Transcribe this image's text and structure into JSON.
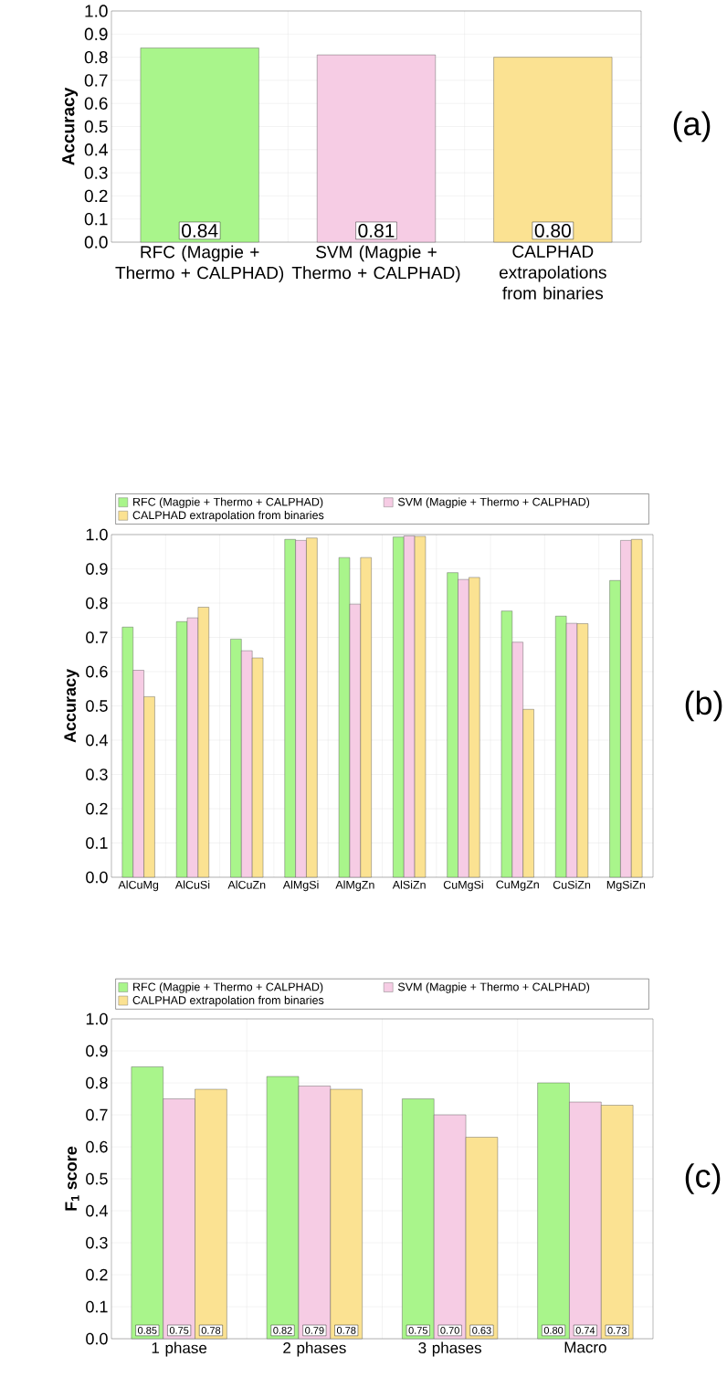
{
  "chart_data": [
    {
      "type": "bar",
      "ylabel": "Accuracy",
      "annotations": [
        "(a)"
      ],
      "categories": [
        "RFC (Magpie + Thermo + CALPHAD)",
        "SVM (Magpie + Thermo + CALPHAD)",
        "CALPHAD extrapolations from binaries"
      ],
      "values": [
        0.84,
        0.81,
        0.8
      ],
      "value_labels": [
        "0.84",
        "0.81",
        "0.80"
      ],
      "colors": [
        "#a9f58b",
        "#f6cce4",
        "#fbe292"
      ],
      "ylim": [
        0,
        1
      ],
      "yticks": [
        {
          "value": 0,
          "label": "0.0"
        },
        {
          "value": 0.1,
          "label": "0.1"
        },
        {
          "value": 0.2,
          "label": "0.2"
        },
        {
          "value": 0.3,
          "label": "0.3"
        },
        {
          "value": 0.4,
          "label": "0.4"
        },
        {
          "value": 0.5,
          "label": "0.5"
        },
        {
          "value": 0.6,
          "label": "0.6"
        },
        {
          "value": 0.7,
          "label": "0.7"
        },
        {
          "value": 0.8,
          "label": "0.8"
        },
        {
          "value": 0.9,
          "label": "0.9"
        },
        {
          "value": 1,
          "label": "1.0"
        }
      ],
      "grid": true
    },
    {
      "type": "bar",
      "ylabel": "Accuracy",
      "annotations": [
        "(b)"
      ],
      "legend": "top",
      "categories": [
        "AlCuMg",
        "AlCuSi",
        "AlCuZn",
        "AlMgSi",
        "AlMgZn",
        "AlSiZn",
        "CuMgSi",
        "CuMgZn",
        "CuSiZn",
        "MgSiZn"
      ],
      "series": [
        {
          "name": "RFC (Magpie + Thermo + CALPHAD)",
          "color": "#a9f58b",
          "values": [
            0.73,
            0.746,
            0.695,
            0.986,
            0.933,
            0.993,
            0.889,
            0.777,
            0.762,
            0.866
          ]
        },
        {
          "name": "SVM (Magpie + Thermo + CALPHAD)",
          "color": "#f6cce4",
          "values": [
            0.604,
            0.757,
            0.661,
            0.983,
            0.797,
            0.996,
            0.869,
            0.686,
            0.741,
            0.983
          ]
        },
        {
          "name": "CALPHAD extrapolation from binaries",
          "color": "#fbe292",
          "values": [
            0.527,
            0.788,
            0.64,
            0.99,
            0.933,
            0.995,
            0.875,
            0.49,
            0.74,
            0.986
          ]
        }
      ],
      "ylim": [
        0,
        1
      ],
      "yticks": [
        {
          "value": 0,
          "label": "0.0"
        },
        {
          "value": 0.1,
          "label": "0.1"
        },
        {
          "value": 0.2,
          "label": "0.2"
        },
        {
          "value": 0.3,
          "label": "0.3"
        },
        {
          "value": 0.4,
          "label": "0.4"
        },
        {
          "value": 0.5,
          "label": "0.5"
        },
        {
          "value": 0.6,
          "label": "0.6"
        },
        {
          "value": 0.7,
          "label": "0.7"
        },
        {
          "value": 0.8,
          "label": "0.8"
        },
        {
          "value": 0.9,
          "label": "0.9"
        },
        {
          "value": 1,
          "label": "1.0"
        }
      ],
      "grid": true
    },
    {
      "type": "bar",
      "ylabel": "F$_{1}$ score",
      "annotations": [
        "(c)"
      ],
      "legend": "top",
      "categories": [
        "1 phase",
        "2 phases",
        "3 phases",
        "Macro"
      ],
      "series": [
        {
          "name": "RFC (Magpie + Thermo + CALPHAD)",
          "color": "#a9f58b",
          "values": [
            0.85,
            0.82,
            0.75,
            0.8
          ],
          "value_labels": [
            "0.85",
            "0.82",
            "0.75",
            "0.80"
          ]
        },
        {
          "name": "SVM (Magpie + Thermo + CALPHAD)",
          "color": "#f6cce4",
          "values": [
            0.75,
            0.79,
            0.7,
            0.74
          ],
          "value_labels": [
            "0.75",
            "0.79",
            "0.70",
            "0.74"
          ]
        },
        {
          "name": "CALPHAD extrapolation from binaries",
          "color": "#fbe292",
          "values": [
            0.78,
            0.78,
            0.63,
            0.73
          ],
          "value_labels": [
            "0.78",
            "0.78",
            "0.63",
            "0.73"
          ]
        }
      ],
      "ylim": [
        0,
        1
      ],
      "yticks": [
        {
          "value": 0,
          "label": "0.0"
        },
        {
          "value": 0.1,
          "label": "0.1"
        },
        {
          "value": 0.2,
          "label": "0.2"
        },
        {
          "value": 0.3,
          "label": "0.3"
        },
        {
          "value": 0.4,
          "label": "0.4"
        },
        {
          "value": 0.5,
          "label": "0.5"
        },
        {
          "value": 0.6,
          "label": "0.6"
        },
        {
          "value": 0.7,
          "label": "0.7"
        },
        {
          "value": 0.8,
          "label": "0.8"
        },
        {
          "value": 0.9,
          "label": "0.9"
        },
        {
          "value": 1,
          "label": "1.0"
        }
      ],
      "grid": true
    }
  ]
}
